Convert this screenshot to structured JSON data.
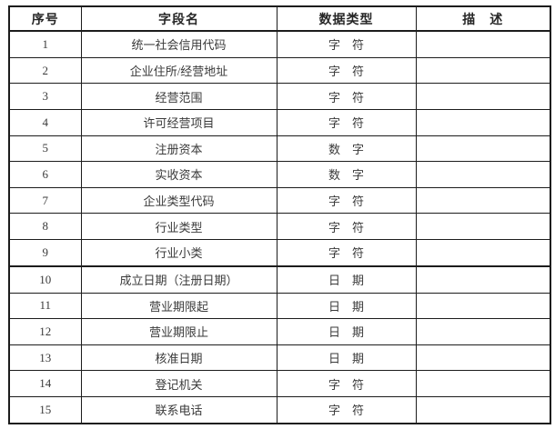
{
  "table": {
    "headers": [
      "序号",
      "字段名",
      "数据类型",
      "描　述"
    ],
    "rows": [
      {
        "no": "1",
        "field": "统一社会信用代码",
        "type": "字　符",
        "desc": ""
      },
      {
        "no": "2",
        "field": "企业住所/经营地址",
        "type": "字　符",
        "desc": ""
      },
      {
        "no": "3",
        "field": "经营范围",
        "type": "字　符",
        "desc": ""
      },
      {
        "no": "4",
        "field": "许可经营项目",
        "type": "字　符",
        "desc": ""
      },
      {
        "no": "5",
        "field": "注册资本",
        "type": "数　字",
        "desc": ""
      },
      {
        "no": "6",
        "field": "实收资本",
        "type": "数　字",
        "desc": ""
      },
      {
        "no": "7",
        "field": "企业类型代码",
        "type": "字　符",
        "desc": ""
      },
      {
        "no": "8",
        "field": "行业类型",
        "type": "字　符",
        "desc": ""
      },
      {
        "no": "9",
        "field": "行业小类",
        "type": "字　符",
        "desc": ""
      },
      {
        "no": "10",
        "field": "成立日期（注册日期）",
        "type": "日　期",
        "desc": "",
        "section_break": true
      },
      {
        "no": "11",
        "field": "营业期限起",
        "type": "日　期",
        "desc": ""
      },
      {
        "no": "12",
        "field": "营业期限止",
        "type": "日　期",
        "desc": ""
      },
      {
        "no": "13",
        "field": "核准日期",
        "type": "日　期",
        "desc": ""
      },
      {
        "no": "14",
        "field": "登记机关",
        "type": "字　符",
        "desc": ""
      },
      {
        "no": "15",
        "field": "联系电话",
        "type": "字　符",
        "desc": ""
      }
    ]
  },
  "colors": {
    "border": "#1c1c1c",
    "text": "#3a3a3a",
    "header_text": "#262626",
    "background": "#ffffff"
  }
}
